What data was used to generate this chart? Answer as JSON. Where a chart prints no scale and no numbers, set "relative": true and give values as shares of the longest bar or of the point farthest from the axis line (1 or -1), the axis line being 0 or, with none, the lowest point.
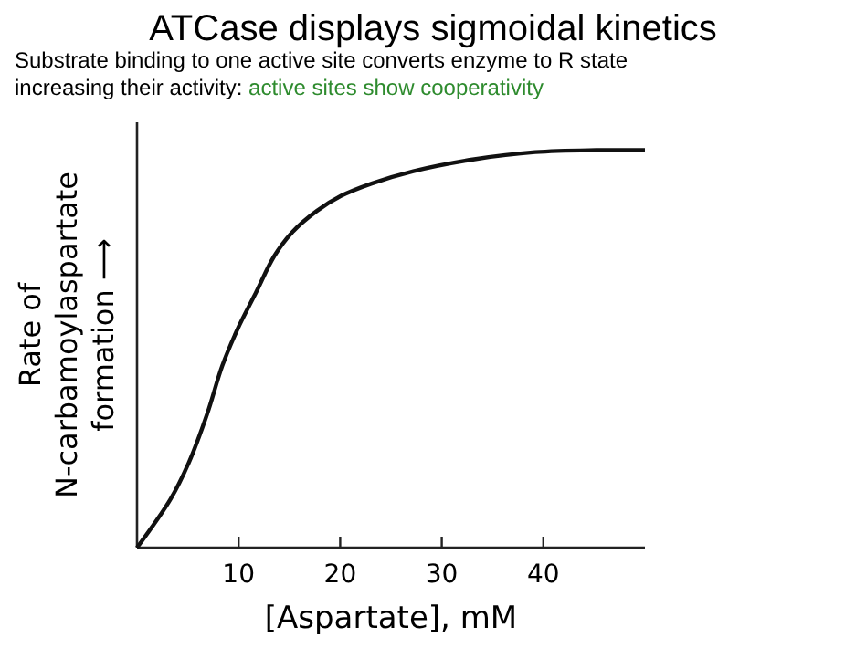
{
  "chart_data": {
    "type": "line",
    "title": "ATCase displays sigmoidal kinetics",
    "subtitle": "Substrate binding to one active site converts enzyme to R state\nincreasing their activity:",
    "annotations": [
      "active sites show cooperativity"
    ],
    "xlabel": "[Aspartate], mM",
    "ylabel": "Rate of\nN-carbamoylaspartate\nformation ⟶",
    "relative": true,
    "xlim": [
      0,
      50
    ],
    "xticks": [
      10,
      20,
      30,
      40
    ],
    "marker": "none",
    "line_style": "solid",
    "series": [
      {
        "color": "#111111",
        "x": [
          0,
          3.3,
          5.1,
          6.9,
          8.4,
          9.9,
          11.7,
          13.5,
          15.3,
          17.7,
          20.1,
          23.1,
          27.2,
          33.2,
          39.2,
          45.2,
          50
        ],
        "values": [
          0,
          0.122,
          0.214,
          0.336,
          0.458,
          0.55,
          0.641,
          0.733,
          0.794,
          0.847,
          0.885,
          0.916,
          0.947,
          0.977,
          0.995,
          1,
          1
        ]
      }
    ]
  }
}
